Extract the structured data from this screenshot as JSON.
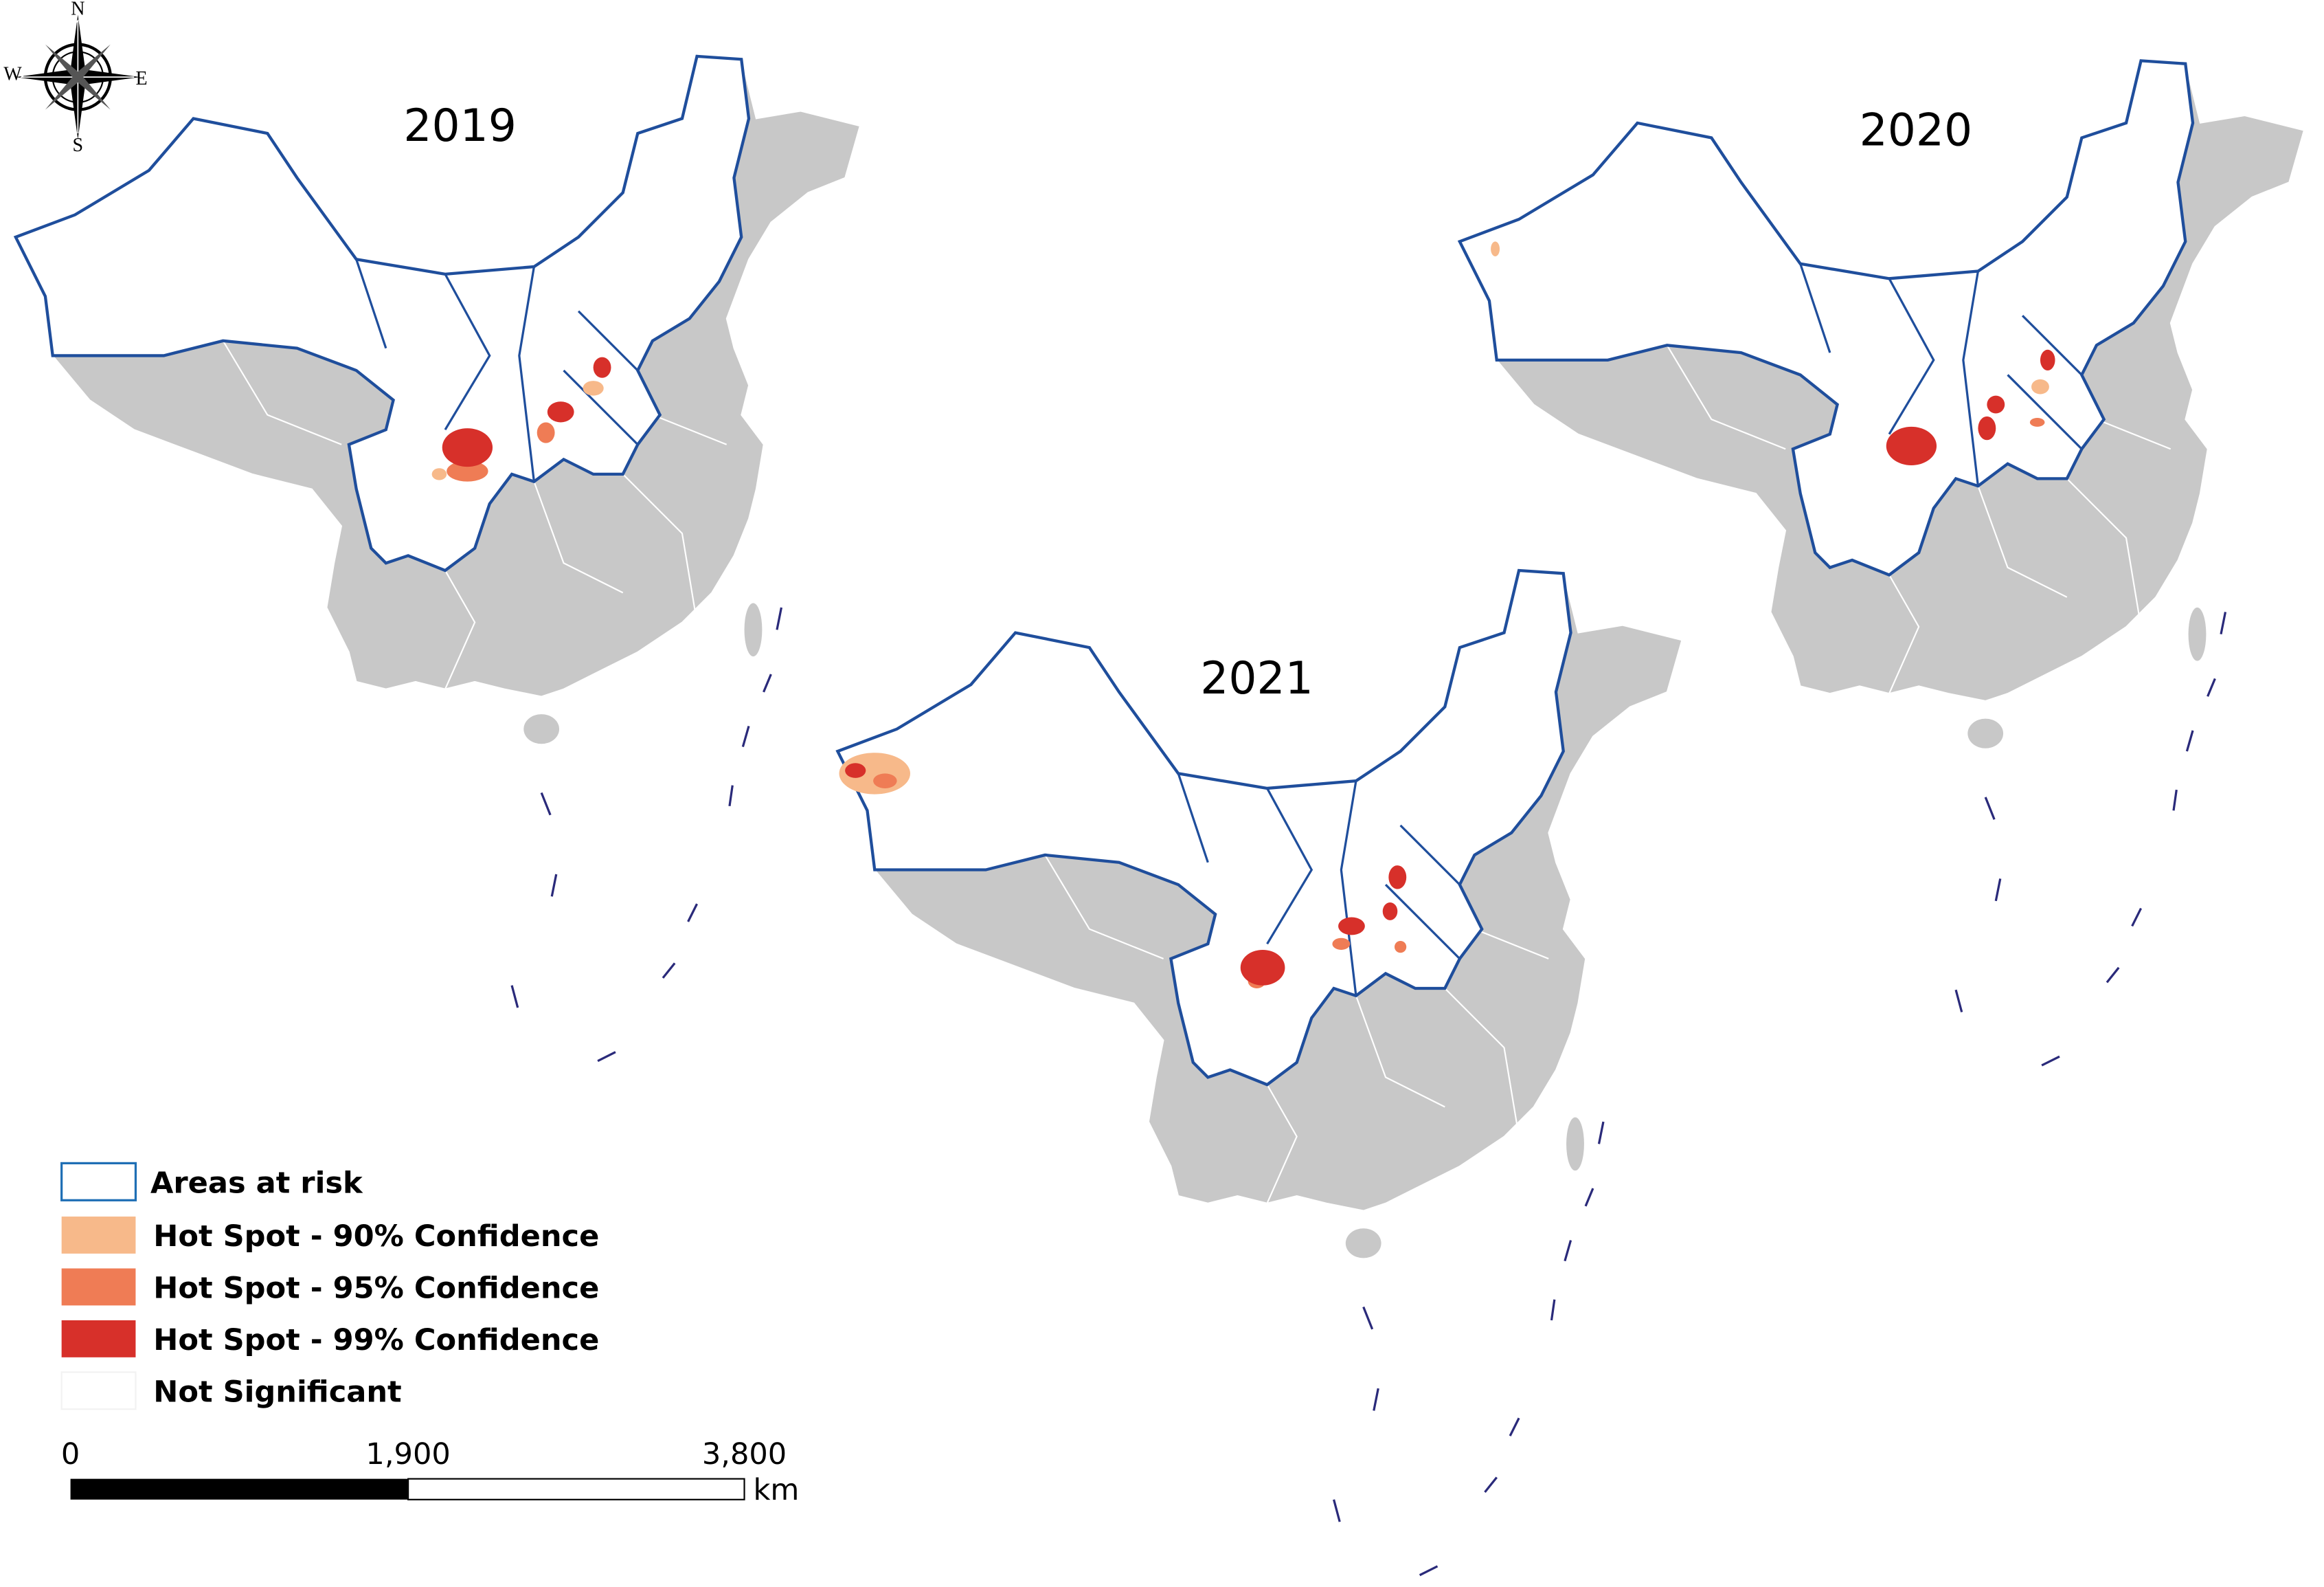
{
  "compass": {
    "n": "N",
    "s": "S",
    "e": "E",
    "w": "W"
  },
  "maps": [
    {
      "title": "2019"
    },
    {
      "title": "2020"
    },
    {
      "title": "2021"
    }
  ],
  "legend": {
    "items": [
      {
        "label": "Areas at risk"
      },
      {
        "label": "Hot Spot - 90% Confidence"
      },
      {
        "label": "Hot Spot - 95% Confidence"
      },
      {
        "label": "Hot Spot - 99% Confidence"
      },
      {
        "label": "Not Significant"
      }
    ]
  },
  "scale": {
    "labels": [
      "0",
      "1,900",
      "3,800"
    ],
    "unit": "km"
  }
}
